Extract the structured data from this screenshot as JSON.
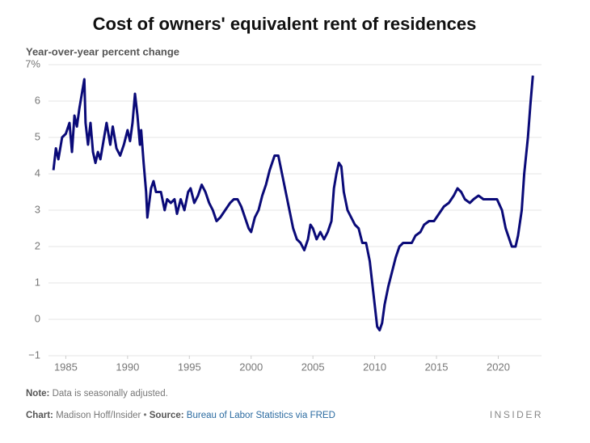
{
  "chart_data": {
    "type": "line",
    "title": "Cost of owners' equivalent rent of residences",
    "y_label": "Year-over-year percent change",
    "color": "#0a0a78",
    "x": [
      1984.0,
      1984.2,
      1984.4,
      1984.7,
      1985.0,
      1985.3,
      1985.5,
      1985.7,
      1985.9,
      1986.1,
      1986.3,
      1986.5,
      1986.6,
      1986.8,
      1987.0,
      1987.2,
      1987.4,
      1987.6,
      1987.8,
      1988.0,
      1988.3,
      1988.6,
      1988.8,
      1989.1,
      1989.4,
      1989.7,
      1990.0,
      1990.2,
      1990.4,
      1990.6,
      1990.8,
      1991.0,
      1991.1,
      1991.3,
      1991.5,
      1991.6,
      1991.9,
      1992.1,
      1992.3,
      1992.7,
      1993.0,
      1993.2,
      1993.5,
      1993.8,
      1994.0,
      1994.3,
      1994.6,
      1994.9,
      1995.1,
      1995.4,
      1995.7,
      1996.0,
      1996.3,
      1996.6,
      1996.9,
      1997.2,
      1997.5,
      1997.9,
      1998.3,
      1998.6,
      1998.9,
      1999.2,
      1999.5,
      1999.8,
      2000.0,
      2000.3,
      2000.6,
      2000.9,
      2001.2,
      2001.5,
      2001.9,
      2002.2,
      2002.5,
      2002.8,
      2003.1,
      2003.4,
      2003.7,
      2004.0,
      2004.3,
      2004.6,
      2004.8,
      2005.0,
      2005.3,
      2005.6,
      2005.9,
      2006.2,
      2006.5,
      2006.7,
      2006.9,
      2007.1,
      2007.3,
      2007.5,
      2007.8,
      2008.1,
      2008.4,
      2008.7,
      2009.0,
      2009.3,
      2009.6,
      2009.8,
      2010.0,
      2010.2,
      2010.4,
      2010.6,
      2010.8,
      2011.1,
      2011.4,
      2011.7,
      2012.0,
      2012.3,
      2012.6,
      2013.0,
      2013.3,
      2013.7,
      2014.0,
      2014.4,
      2014.8,
      2015.2,
      2015.6,
      2016.0,
      2016.4,
      2016.7,
      2017.0,
      2017.3,
      2017.7,
      2018.0,
      2018.4,
      2018.8,
      2019.2,
      2019.6,
      2019.9,
      2020.3,
      2020.6,
      2020.9,
      2021.1,
      2021.4,
      2021.6,
      2021.9,
      2022.1,
      2022.4,
      2022.6,
      2022.8
    ],
    "values": [
      4.1,
      4.7,
      4.4,
      5.0,
      5.1,
      5.4,
      4.6,
      5.6,
      5.3,
      5.8,
      6.2,
      6.6,
      5.4,
      4.8,
      5.4,
      4.6,
      4.3,
      4.6,
      4.4,
      4.8,
      5.4,
      4.8,
      5.3,
      4.7,
      4.5,
      4.8,
      5.2,
      4.9,
      5.4,
      6.2,
      5.6,
      4.8,
      5.2,
      4.3,
      3.5,
      2.8,
      3.6,
      3.8,
      3.5,
      3.5,
      3.0,
      3.3,
      3.2,
      3.3,
      2.9,
      3.3,
      3.0,
      3.5,
      3.6,
      3.2,
      3.4,
      3.7,
      3.5,
      3.2,
      3.0,
      2.7,
      2.8,
      3.0,
      3.2,
      3.3,
      3.3,
      3.1,
      2.8,
      2.5,
      2.4,
      2.8,
      3.0,
      3.4,
      3.7,
      4.1,
      4.5,
      4.5,
      4.0,
      3.5,
      3.0,
      2.5,
      2.2,
      2.1,
      1.9,
      2.2,
      2.6,
      2.5,
      2.2,
      2.4,
      2.2,
      2.4,
      2.7,
      3.6,
      4.0,
      4.3,
      4.2,
      3.5,
      3.0,
      2.8,
      2.6,
      2.5,
      2.1,
      2.1,
      1.6,
      1.0,
      0.4,
      -0.2,
      -0.3,
      -0.1,
      0.4,
      0.9,
      1.3,
      1.7,
      2.0,
      2.1,
      2.1,
      2.1,
      2.3,
      2.4,
      2.6,
      2.7,
      2.7,
      2.9,
      3.1,
      3.2,
      3.4,
      3.6,
      3.5,
      3.3,
      3.2,
      3.3,
      3.4,
      3.3,
      3.3,
      3.3,
      3.3,
      3.0,
      2.5,
      2.2,
      2.0,
      2.0,
      2.3,
      3.0,
      4.0,
      5.0,
      5.9,
      6.7
    ],
    "xlim": [
      1983.6,
      2023.5
    ],
    "xticks": [
      1985,
      1990,
      1995,
      2000,
      2005,
      2010,
      2015,
      2020
    ],
    "ylim": [
      -1,
      7
    ],
    "yticks": [
      {
        "value": -1,
        "label": "−1"
      },
      0,
      1,
      2,
      3,
      4,
      5,
      6,
      {
        "value": 7,
        "label": "7%"
      }
    ],
    "grid": true
  },
  "footer": {
    "note_label": "Note:",
    "note": "Data is seasonally adjusted.",
    "chart_label": "Chart:",
    "chart": "Madison Hoff/Insider •",
    "source_label": "Source:",
    "source": "Bureau of Labor Statistics via FRED",
    "brand": "INSIDER"
  }
}
